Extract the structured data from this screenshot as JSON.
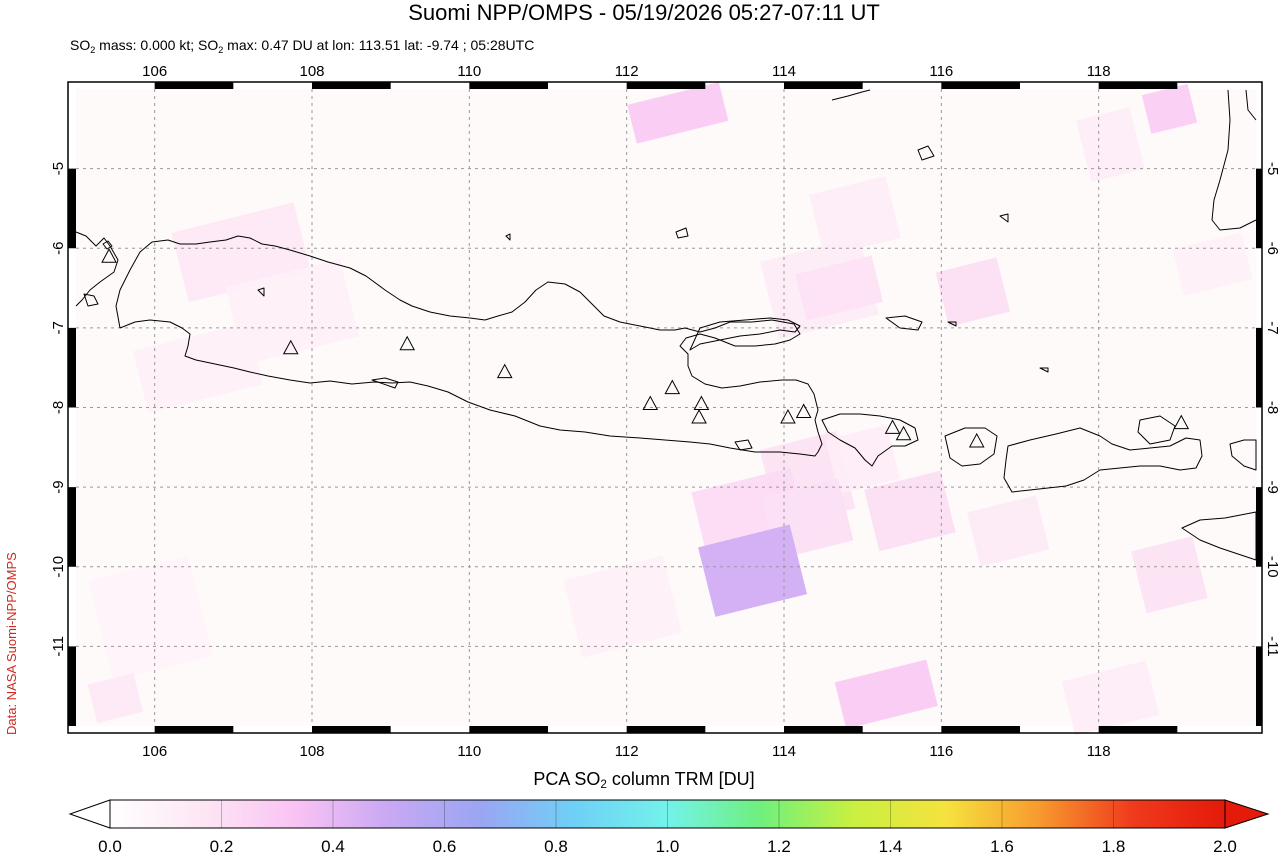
{
  "header": {
    "title": "Suomi NPP/OMPS - 05/19/2026 05:27-07:11 UT",
    "subtitle_parts": [
      "SO",
      "2",
      " mass: 0.000 kt; SO",
      "2",
      " max: 0.47 DU at lon: 113.51 lat: -9.74 ; 05:28UTC"
    ]
  },
  "credit": "Data: NASA Suomi-NPP/OMPS",
  "map": {
    "lon_range": [
      105,
      120
    ],
    "lat_range": [
      -12,
      -4
    ],
    "lon_ticks": [
      "106",
      "108",
      "110",
      "112",
      "114",
      "116",
      "118"
    ],
    "lat_ticks": [
      "-5",
      "-6",
      "-7",
      "-8",
      "-9",
      "-10",
      "-11"
    ],
    "gridlines": true,
    "volcanoes": [
      {
        "lon": 105.42,
        "lat": -6.1
      },
      {
        "lon": 107.73,
        "lat": -7.25
      },
      {
        "lon": 109.21,
        "lat": -7.2
      },
      {
        "lon": 110.45,
        "lat": -7.55
      },
      {
        "lon": 112.3,
        "lat": -7.95
      },
      {
        "lon": 112.58,
        "lat": -7.75
      },
      {
        "lon": 112.95,
        "lat": -7.95
      },
      {
        "lon": 112.92,
        "lat": -8.12
      },
      {
        "lon": 114.05,
        "lat": -8.12
      },
      {
        "lon": 114.25,
        "lat": -8.05
      },
      {
        "lon": 115.38,
        "lat": -8.25
      },
      {
        "lon": 115.52,
        "lat": -8.33
      },
      {
        "lon": 116.45,
        "lat": -8.42
      },
      {
        "lon": 119.05,
        "lat": -8.19
      }
    ],
    "so2_pixels": [
      {
        "lon": 112.05,
        "lat": -4.05,
        "w": 1.2,
        "h": 0.5,
        "value": 0.3
      },
      {
        "lon": 114.4,
        "lat": -5.2,
        "w": 1.0,
        "h": 0.8,
        "value": 0.12
      },
      {
        "lon": 106.3,
        "lat": -5.6,
        "w": 1.6,
        "h": 0.9,
        "value": 0.15
      },
      {
        "lon": 107.0,
        "lat": -6.3,
        "w": 1.5,
        "h": 1.0,
        "value": 0.1
      },
      {
        "lon": 113.8,
        "lat": -6.0,
        "w": 1.3,
        "h": 1.0,
        "value": 0.13
      },
      {
        "lon": 114.2,
        "lat": -6.2,
        "w": 1.0,
        "h": 0.6,
        "value": 0.18
      },
      {
        "lon": 116.0,
        "lat": -6.2,
        "w": 0.8,
        "h": 0.7,
        "value": 0.2
      },
      {
        "lon": 117.8,
        "lat": -4.3,
        "w": 0.7,
        "h": 0.8,
        "value": 0.12
      },
      {
        "lon": 118.6,
        "lat": -4.0,
        "w": 0.6,
        "h": 0.5,
        "value": 0.28
      },
      {
        "lon": 105.8,
        "lat": -7.1,
        "w": 1.5,
        "h": 0.8,
        "value": 0.1
      },
      {
        "lon": 113.8,
        "lat": -8.4,
        "w": 1.0,
        "h": 1.0,
        "value": 0.18
      },
      {
        "lon": 114.6,
        "lat": -8.3,
        "w": 0.8,
        "h": 0.7,
        "value": 0.12
      },
      {
        "lon": 112.9,
        "lat": -8.9,
        "w": 1.3,
        "h": 0.8,
        "value": 0.22
      },
      {
        "lon": 113.8,
        "lat": -9.0,
        "w": 1.0,
        "h": 0.8,
        "value": 0.2
      },
      {
        "lon": 113.0,
        "lat": -9.6,
        "w": 1.2,
        "h": 0.9,
        "value": 0.47
      },
      {
        "lon": 115.1,
        "lat": -8.9,
        "w": 1.0,
        "h": 0.8,
        "value": 0.2
      },
      {
        "lon": 116.4,
        "lat": -9.2,
        "w": 0.9,
        "h": 0.7,
        "value": 0.14
      },
      {
        "lon": 118.5,
        "lat": -9.7,
        "w": 0.8,
        "h": 0.8,
        "value": 0.18
      },
      {
        "lon": 114.7,
        "lat": -11.3,
        "w": 1.2,
        "h": 0.6,
        "value": 0.3
      },
      {
        "lon": 111.3,
        "lat": -10.0,
        "w": 1.3,
        "h": 1.0,
        "value": 0.1
      },
      {
        "lon": 105.3,
        "lat": -10.0,
        "w": 1.3,
        "h": 1.3,
        "value": 0.08
      },
      {
        "lon": 105.2,
        "lat": -11.4,
        "w": 0.6,
        "h": 0.5,
        "value": 0.15
      },
      {
        "lon": 117.6,
        "lat": -11.3,
        "w": 1.1,
        "h": 0.7,
        "value": 0.12
      },
      {
        "lon": 119.0,
        "lat": -5.9,
        "w": 0.9,
        "h": 0.6,
        "value": 0.1
      }
    ]
  },
  "colorbar": {
    "label_parts": [
      "PCA SO",
      "2",
      " column TRM [DU]"
    ],
    "min": 0.0,
    "max": 2.0,
    "ticks": [
      "0.0",
      "0.2",
      "0.4",
      "0.6",
      "0.8",
      "1.0",
      "1.2",
      "1.4",
      "1.6",
      "1.8",
      "2.0"
    ],
    "colors": [
      "#ffffff",
      "#fde6f4",
      "#f9c3f4",
      "#c9a8f3",
      "#9aa6f3",
      "#6fd0f6",
      "#73f2ea",
      "#6ff07d",
      "#c9f040",
      "#f6e23e",
      "#f79a2f",
      "#ef3b1c",
      "#e41a0a"
    ]
  }
}
